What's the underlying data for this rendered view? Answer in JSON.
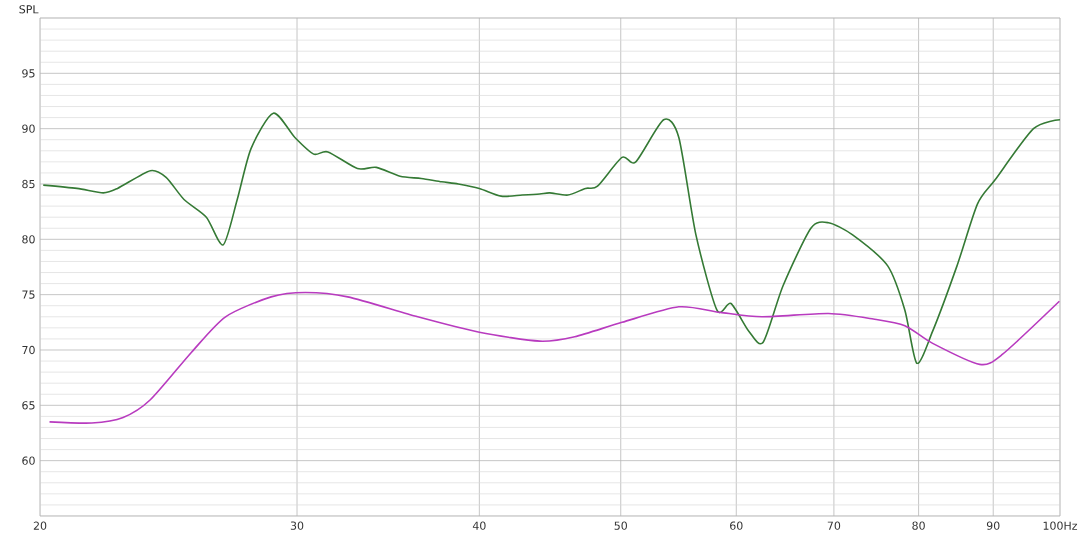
{
  "chart_data": {
    "type": "line",
    "ylabel": "SPL",
    "log": "x",
    "grid": true,
    "marker": "none",
    "line_style": "solid",
    "xlim": [
      20,
      100
    ],
    "ylim": [
      55,
      100
    ],
    "xticks": [
      20,
      30,
      40,
      50,
      60,
      70,
      80,
      90,
      {
        "value": 100,
        "label": "100Hz"
      }
    ],
    "yticks": [
      {
        "value": 55,
        "label": null
      },
      60,
      65,
      70,
      75,
      80,
      85,
      90,
      95,
      {
        "value": 100,
        "label": null
      }
    ],
    "series": [
      {
        "color": "#357a35",
        "x": [
          20.1,
          21.2,
          22.1,
          22.6,
          23.8,
          24.4,
          25.1,
          26.0,
          26.7,
          27.3,
          27.9,
          28.9,
          29.9,
          30.8,
          31.5,
          33.0,
          34.0,
          35.3,
          36.5,
          37.7,
          38.7,
          40.0,
          41.4,
          42.8,
          44.0,
          44.7,
          46.0,
          47.3,
          48.2,
          50.1,
          51.2,
          53.5,
          54.8,
          56.3,
          58.2,
          59.5,
          61.2,
          62.6,
          64.6,
          67.5,
          69.4,
          72.1,
          76.2,
          78.3,
          79.8,
          81.8,
          85.0,
          87.8,
          90.3,
          95.9,
          100
        ],
        "values": [
          84.9,
          84.6,
          84.2,
          84.6,
          86.2,
          85.6,
          83.6,
          82.0,
          79.5,
          83.6,
          88.2,
          91.4,
          89.2,
          87.7,
          87.9,
          86.4,
          86.5,
          85.7,
          85.5,
          85.2,
          85.0,
          84.6,
          83.9,
          84.0,
          84.1,
          84.2,
          84.0,
          84.6,
          84.8,
          87.4,
          87.0,
          90.8,
          89.2,
          80.4,
          73.6,
          74.2,
          71.7,
          70.7,
          75.8,
          81.0,
          81.5,
          80.4,
          77.6,
          73.6,
          68.8,
          71.7,
          77.6,
          83.2,
          85.4,
          90.0,
          90.8
        ]
      },
      {
        "color": "#b83bbf",
        "x": [
          20.3,
          21.7,
          22.8,
          23.8,
          25.4,
          26.8,
          28.8,
          30.4,
          32.5,
          36.3,
          40.0,
          44.0,
          46.5,
          50.1,
          54.8,
          58.5,
          62.5,
          69.4,
          74.5,
          78.3,
          81.8,
          88.1,
          91.3,
          99.9
        ],
        "values": [
          63.5,
          63.4,
          63.9,
          65.5,
          69.8,
          73.0,
          74.8,
          75.2,
          74.8,
          73.0,
          71.6,
          70.8,
          71.2,
          72.5,
          73.9,
          73.4,
          73.0,
          73.3,
          72.8,
          72.2,
          70.6,
          68.7,
          69.6,
          74.4
        ]
      }
    ]
  }
}
